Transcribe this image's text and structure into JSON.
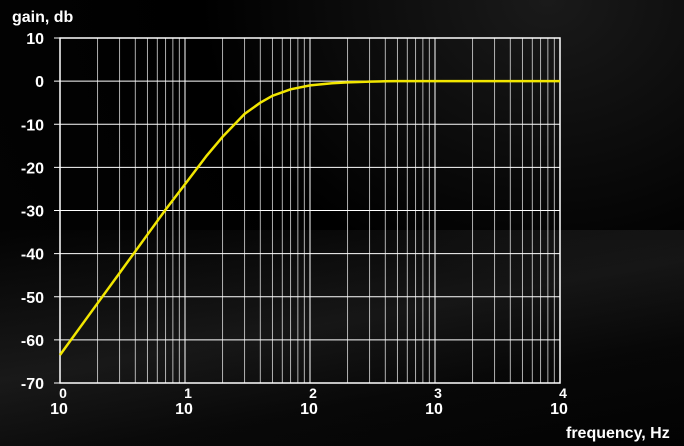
{
  "chart_data": {
    "type": "line",
    "ylabel": "gain, db",
    "xlabel": "frequency, Hz",
    "x_scale": "log",
    "xlim": [
      1,
      10000
    ],
    "ylim": [
      -70,
      10
    ],
    "grid": true,
    "y_ticks": [
      "10",
      "0",
      "-10",
      "-20",
      "-30",
      "-40",
      "-50",
      "-60",
      "-70"
    ],
    "x_ticks": [
      {
        "base": "10",
        "exp": "0"
      },
      {
        "base": "10",
        "exp": "1"
      },
      {
        "base": "10",
        "exp": "2"
      },
      {
        "base": "10",
        "exp": "3"
      },
      {
        "base": "10",
        "exp": "4"
      }
    ],
    "series": [
      {
        "color": "#f2e600",
        "x": [
          1,
          2,
          3,
          5,
          7,
          10,
          15,
          20,
          30,
          40,
          50,
          70,
          100,
          150,
          200,
          300,
          400,
          500,
          700,
          1000,
          2000,
          5000,
          10000
        ],
        "y": [
          -63.5,
          -51.5,
          -44.5,
          -35.6,
          -29.8,
          -23.9,
          -17.2,
          -12.9,
          -7.6,
          -5.0,
          -3.4,
          -1.9,
          -1.0,
          -0.5,
          -0.3,
          -0.1,
          -0.05,
          0,
          0,
          0,
          0,
          0,
          0
        ]
      }
    ]
  }
}
